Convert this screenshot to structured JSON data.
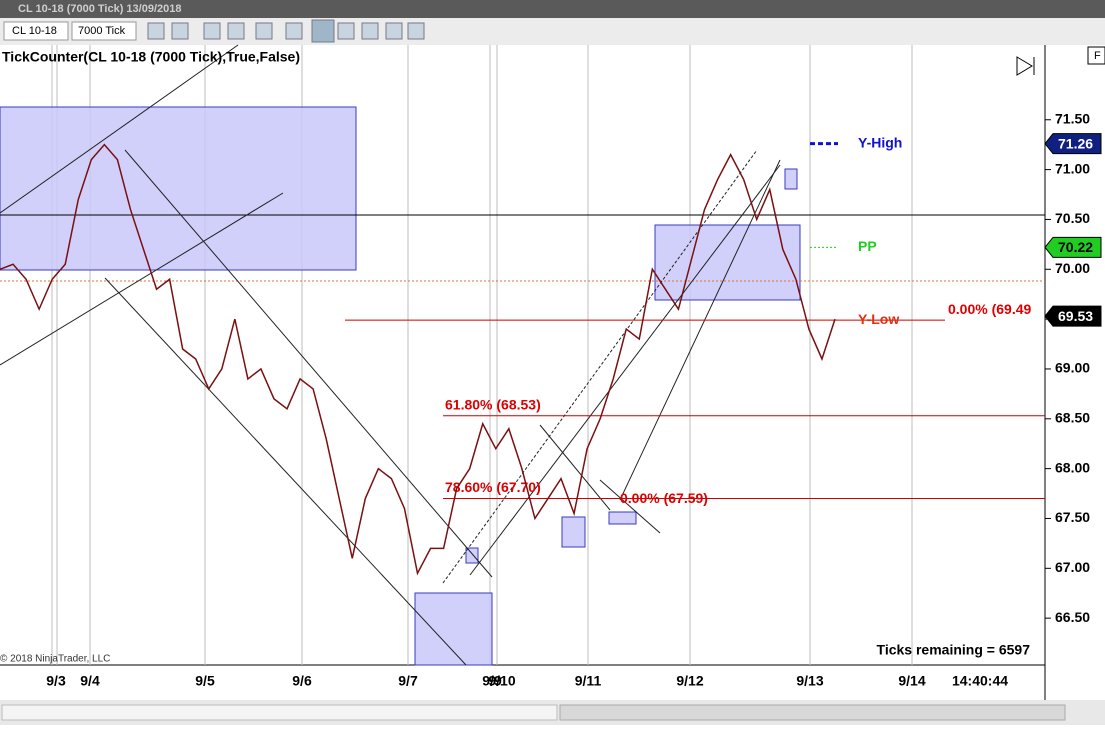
{
  "window": {
    "title": "CL 10-18 (7000 Tick)  13/09/2018"
  },
  "toolbar": {
    "instrument": "CL 10-18",
    "interval": "7000 Tick"
  },
  "chart_data": {
    "type": "line",
    "title": "TickCounter(CL 10-18 (7000 Tick),True,False)",
    "color": "#7a1010",
    "values": [
      70.0,
      70.05,
      69.9,
      69.6,
      69.9,
      70.05,
      70.7,
      71.1,
      71.25,
      71.1,
      70.6,
      70.2,
      69.8,
      69.9,
      69.2,
      69.1,
      68.8,
      69.0,
      69.5,
      68.9,
      69.0,
      68.7,
      68.6,
      68.9,
      68.8,
      68.3,
      67.7,
      67.1,
      67.7,
      68.0,
      67.9,
      67.6,
      66.95,
      67.2,
      67.2,
      67.8,
      68.0,
      68.45,
      68.2,
      68.4,
      68.0,
      67.5,
      67.7,
      67.9,
      67.55,
      68.2,
      68.5,
      68.9,
      69.4,
      69.3,
      70.0,
      69.8,
      69.6,
      70.1,
      70.6,
      70.9,
      71.15,
      70.9,
      70.5,
      70.8,
      70.2,
      69.9,
      69.4,
      69.1,
      69.5
    ],
    "ylim": [
      66.03,
      72.25
    ],
    "yticks": [
      {
        "value": 66.5,
        "label": "66.50"
      },
      {
        "value": 67,
        "label": "67.00"
      },
      {
        "value": 67.5,
        "label": "67.50"
      },
      {
        "value": 68,
        "label": "68.00"
      },
      {
        "value": 68.5,
        "label": "68.50"
      },
      {
        "value": 69,
        "label": "69.00"
      },
      {
        "value": 69.5,
        "label": "69.50"
      },
      {
        "value": 70,
        "label": "70.00"
      },
      {
        "value": 70.5,
        "label": "70.50"
      },
      {
        "value": 71,
        "label": "71.00"
      },
      {
        "value": 71.5,
        "label": "71.50"
      }
    ],
    "x_labels": [
      "9/3",
      "9/4",
      "9/5",
      "9/6",
      "9/7",
      "9/9",
      "9/10",
      "9/11",
      "9/12",
      "9/13",
      "9/14"
    ],
    "time": "14:40:44",
    "levels": [
      {
        "value": 69.49,
        "label": "0.00% (69.49"
      },
      {
        "value": 68.53,
        "label": "61.80% (68.53)"
      },
      {
        "value": 67.7,
        "label": "78.60% (67.70)"
      },
      {
        "value": 67.59,
        "label": "0.00% (67.59)"
      }
    ],
    "pivots": [
      {
        "value": 71.26,
        "label": "Y-High",
        "color": "#1010d0"
      },
      {
        "value": 70.22,
        "label": "PP",
        "color": "#22cc22"
      },
      {
        "value": 69.49,
        "label": "Y-Low",
        "color": "#e03010"
      }
    ],
    "price_markers": [
      {
        "value": 71.26,
        "color": "#102080",
        "text_color": "#ffffff"
      },
      {
        "value": 70.22,
        "color": "#22cc22",
        "text_color": "#000000"
      },
      {
        "value": 69.53,
        "color": "#000000",
        "text_color": "#ffffff"
      }
    ],
    "ticks_remaining": "Ticks remaining = 6597",
    "copyright": "© 2018 NinjaTrader, LLC"
  }
}
